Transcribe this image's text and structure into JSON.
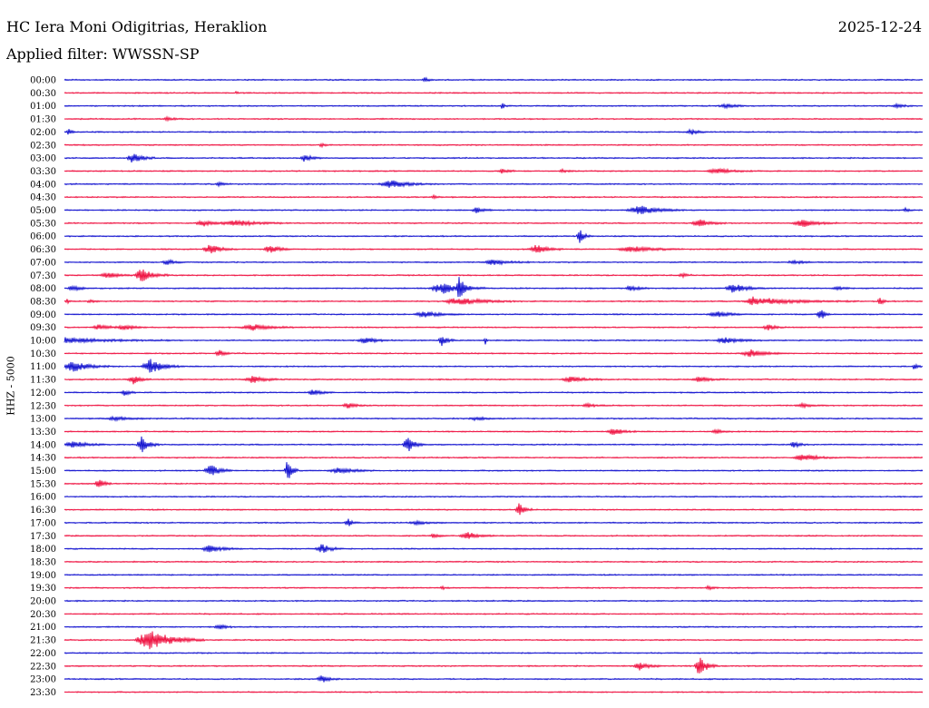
{
  "header": {
    "station": "HC Iera Moni Odigitrias, Heraklion",
    "date": "2025-12-24",
    "filter": "Applied filter: WWSSN-SP"
  },
  "colors": {
    "blue": "#0000cc",
    "red": "#ee0033"
  },
  "chart_data": {
    "type": "line",
    "title": "HC Iera Moni Odigitrias, Heraklion",
    "ylabel": "HHZ - 5000",
    "grid": false,
    "legend": "none",
    "rows": [
      {
        "time": "00:00",
        "color": "blue",
        "events": [
          [
            0.42,
            3,
            10
          ]
        ]
      },
      {
        "time": "00:30",
        "color": "red",
        "events": [
          [
            0.2,
            2,
            3
          ]
        ]
      },
      {
        "time": "01:00",
        "color": "blue",
        "events": [
          [
            0.51,
            4,
            6
          ],
          [
            0.77,
            2,
            30
          ],
          [
            0.97,
            2,
            20
          ]
        ]
      },
      {
        "time": "01:30",
        "color": "red",
        "events": [
          [
            0.12,
            2,
            20
          ]
        ]
      },
      {
        "time": "02:00",
        "color": "blue",
        "events": [
          [
            0.005,
            3,
            8
          ],
          [
            0.73,
            3,
            18
          ]
        ]
      },
      {
        "time": "02:30",
        "color": "red",
        "events": [
          [
            0.3,
            2,
            12
          ]
        ]
      },
      {
        "time": "03:00",
        "color": "blue",
        "events": [
          [
            0.08,
            6,
            25
          ],
          [
            0.28,
            4,
            20
          ]
        ]
      },
      {
        "time": "03:30",
        "color": "red",
        "events": [
          [
            0.51,
            3,
            15
          ],
          [
            0.58,
            2,
            12
          ],
          [
            0.76,
            3,
            40
          ]
        ]
      },
      {
        "time": "04:00",
        "color": "blue",
        "events": [
          [
            0.18,
            2,
            15
          ],
          [
            0.38,
            4,
            50
          ]
        ]
      },
      {
        "time": "04:30",
        "color": "red",
        "events": [
          [
            0.43,
            2,
            10
          ]
        ]
      },
      {
        "time": "05:00",
        "color": "blue",
        "events": [
          [
            0.48,
            3,
            20
          ],
          [
            0.67,
            5,
            50
          ],
          [
            0.98,
            2,
            10
          ]
        ]
      },
      {
        "time": "05:30",
        "color": "red",
        "events": [
          [
            0.16,
            4,
            25
          ],
          [
            0.2,
            3,
            60
          ],
          [
            0.74,
            4,
            30
          ],
          [
            0.86,
            4,
            40
          ]
        ]
      },
      {
        "time": "06:00",
        "color": "blue",
        "events": [
          [
            0.6,
            9,
            12
          ]
        ]
      },
      {
        "time": "06:30",
        "color": "red",
        "events": [
          [
            0.17,
            5,
            30
          ],
          [
            0.24,
            4,
            30
          ],
          [
            0.55,
            5,
            30
          ],
          [
            0.66,
            3,
            60
          ]
        ]
      },
      {
        "time": "07:00",
        "color": "blue",
        "events": [
          [
            0.12,
            3,
            20
          ],
          [
            0.5,
            3,
            45
          ],
          [
            0.85,
            2,
            25
          ]
        ]
      },
      {
        "time": "07:30",
        "color": "red",
        "events": [
          [
            0.05,
            3,
            30
          ],
          [
            0.09,
            7,
            30
          ],
          [
            0.72,
            2,
            15
          ]
        ]
      },
      {
        "time": "08:00",
        "color": "blue",
        "events": [
          [
            0.01,
            3,
            20
          ],
          [
            0.44,
            6,
            50
          ],
          [
            0.46,
            11,
            14
          ],
          [
            0.66,
            3,
            25
          ],
          [
            0.78,
            5,
            35
          ],
          [
            0.9,
            2,
            20
          ]
        ]
      },
      {
        "time": "08:30",
        "color": "red",
        "events": [
          [
            0.003,
            4,
            6
          ],
          [
            0.03,
            2,
            12
          ],
          [
            0.46,
            4,
            65
          ],
          [
            0.8,
            6,
            12
          ],
          [
            0.82,
            3,
            100
          ],
          [
            0.95,
            4,
            10
          ]
        ]
      },
      {
        "time": "09:00",
        "color": "blue",
        "events": [
          [
            0.42,
            3,
            40
          ],
          [
            0.76,
            3,
            40
          ],
          [
            0.88,
            8,
            12
          ]
        ]
      },
      {
        "time": "09:30",
        "color": "red",
        "events": [
          [
            0.04,
            3,
            30
          ],
          [
            0.07,
            3,
            25
          ],
          [
            0.22,
            3,
            50
          ],
          [
            0.82,
            3,
            20
          ]
        ]
      },
      {
        "time": "10:00",
        "color": "blue",
        "events": [
          [
            0.0,
            3,
            120
          ],
          [
            0.35,
            4,
            30
          ],
          [
            0.44,
            6,
            15
          ],
          [
            0.49,
            7,
            3
          ],
          [
            0.77,
            3,
            40
          ]
        ]
      },
      {
        "time": "10:30",
        "color": "red",
        "events": [
          [
            0.18,
            4,
            15
          ],
          [
            0.8,
            4,
            40
          ]
        ]
      },
      {
        "time": "11:00",
        "color": "blue",
        "events": [
          [
            0.01,
            6,
            40
          ],
          [
            0.1,
            8,
            35
          ],
          [
            0.99,
            4,
            8
          ]
        ]
      },
      {
        "time": "11:30",
        "color": "red",
        "events": [
          [
            0.08,
            5,
            20
          ],
          [
            0.22,
            4,
            35
          ],
          [
            0.59,
            3,
            40
          ],
          [
            0.74,
            3,
            30
          ]
        ]
      },
      {
        "time": "12:00",
        "color": "blue",
        "events": [
          [
            0.07,
            3,
            15
          ],
          [
            0.29,
            3,
            25
          ]
        ]
      },
      {
        "time": "12:30",
        "color": "red",
        "events": [
          [
            0.33,
            3,
            20
          ],
          [
            0.61,
            2,
            25
          ],
          [
            0.86,
            2,
            30
          ]
        ]
      },
      {
        "time": "13:00",
        "color": "blue",
        "events": [
          [
            0.06,
            2,
            40
          ],
          [
            0.48,
            2,
            30
          ]
        ]
      },
      {
        "time": "13:30",
        "color": "red",
        "events": [
          [
            0.64,
            4,
            25
          ],
          [
            0.76,
            2,
            20
          ]
        ]
      },
      {
        "time": "14:00",
        "color": "blue",
        "events": [
          [
            0.01,
            4,
            35
          ],
          [
            0.09,
            9,
            20
          ],
          [
            0.4,
            9,
            20
          ],
          [
            0.85,
            4,
            15
          ]
        ]
      },
      {
        "time": "14:30",
        "color": "red",
        "events": [
          [
            0.86,
            4,
            40
          ]
        ]
      },
      {
        "time": "15:00",
        "color": "blue",
        "events": [
          [
            0.17,
            7,
            25
          ],
          [
            0.26,
            13,
            12
          ],
          [
            0.32,
            3,
            40
          ]
        ]
      },
      {
        "time": "15:30",
        "color": "red",
        "events": [
          [
            0.04,
            6,
            15
          ]
        ]
      },
      {
        "time": "16:00",
        "color": "blue",
        "events": []
      },
      {
        "time": "16:30",
        "color": "red",
        "events": [
          [
            0.53,
            8,
            15
          ]
        ]
      },
      {
        "time": "17:00",
        "color": "blue",
        "events": [
          [
            0.33,
            5,
            12
          ],
          [
            0.41,
            2,
            30
          ]
        ]
      },
      {
        "time": "17:30",
        "color": "red",
        "events": [
          [
            0.43,
            2,
            15
          ],
          [
            0.47,
            4,
            30
          ]
        ]
      },
      {
        "time": "18:00",
        "color": "blue",
        "events": [
          [
            0.17,
            4,
            35
          ],
          [
            0.3,
            5,
            25
          ]
        ]
      },
      {
        "time": "18:30",
        "color": "red",
        "events": []
      },
      {
        "time": "19:00",
        "color": "blue",
        "events": []
      },
      {
        "time": "19:30",
        "color": "red",
        "events": [
          [
            0.44,
            2,
            8
          ],
          [
            0.75,
            2,
            12
          ]
        ]
      },
      {
        "time": "20:00",
        "color": "blue",
        "events": []
      },
      {
        "time": "20:30",
        "color": "red",
        "events": []
      },
      {
        "time": "21:00",
        "color": "blue",
        "events": [
          [
            0.18,
            3,
            20
          ]
        ]
      },
      {
        "time": "21:30",
        "color": "red",
        "events": [
          [
            0.1,
            11,
            60
          ]
        ]
      },
      {
        "time": "22:00",
        "color": "blue",
        "events": []
      },
      {
        "time": "22:30",
        "color": "red",
        "events": [
          [
            0.67,
            5,
            25
          ],
          [
            0.74,
            11,
            20
          ]
        ]
      },
      {
        "time": "23:00",
        "color": "blue",
        "events": [
          [
            0.3,
            4,
            20
          ]
        ]
      },
      {
        "time": "23:30",
        "color": "red",
        "events": []
      }
    ]
  }
}
